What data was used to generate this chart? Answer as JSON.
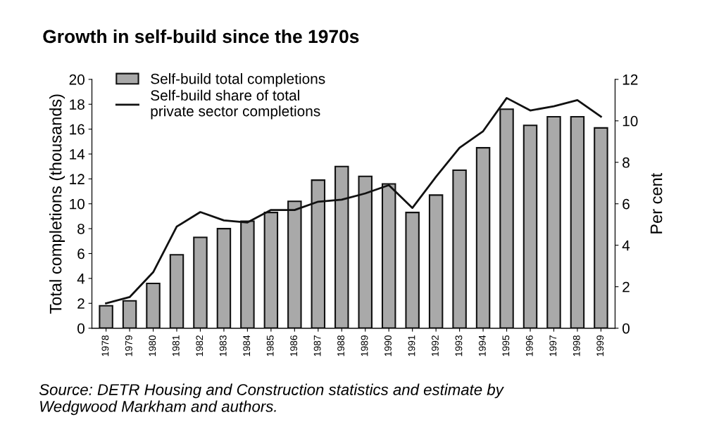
{
  "chart_data": {
    "type": "bar",
    "title": "Growth in self-build since the 1970s",
    "categories": [
      "1978",
      "1979",
      "1980",
      "1981",
      "1982",
      "1983",
      "1984",
      "1985",
      "1986",
      "1987",
      "1988",
      "1989",
      "1990",
      "1991",
      "1992",
      "1993",
      "1994",
      "1995",
      "1996",
      "1997",
      "1998",
      "1999"
    ],
    "series": [
      {
        "name": "Self-build total completions",
        "color": "#a9a9a9",
        "values": [
          1.8,
          2.2,
          3.6,
          5.9,
          7.3,
          8.0,
          8.6,
          9.3,
          10.2,
          11.9,
          13.0,
          12.2,
          11.6,
          9.3,
          10.7,
          12.7,
          14.5,
          17.6,
          16.3,
          17.0,
          17.0,
          16.1
        ]
      },
      {
        "name": "Self-build share of total\nprivate sector completions",
        "type": "line",
        "axis": "y2",
        "color": "#111111",
        "values": [
          1.2,
          1.5,
          2.7,
          4.9,
          5.6,
          5.2,
          5.1,
          5.7,
          5.7,
          6.1,
          6.2,
          6.5,
          6.9,
          5.8,
          7.3,
          8.7,
          9.5,
          11.1,
          10.5,
          10.7,
          11.0,
          10.2
        ]
      }
    ],
    "ylabel": "Total completions (thousands)",
    "y2label": "Per cent",
    "ylim": [
      0,
      20
    ],
    "yticks": [
      0,
      2,
      4,
      6,
      8,
      10,
      12,
      14,
      16,
      18,
      20
    ],
    "y2lim": [
      0,
      12
    ],
    "y2ticks": [
      0,
      2,
      4,
      6,
      8,
      10,
      12
    ],
    "legend": "top left",
    "grid": false,
    "marker": "none",
    "line_style": "solid",
    "annotations": [
      "Source: DETR Housing and Construction statistics and estimate by\nWedgwood Markham and authors."
    ]
  }
}
